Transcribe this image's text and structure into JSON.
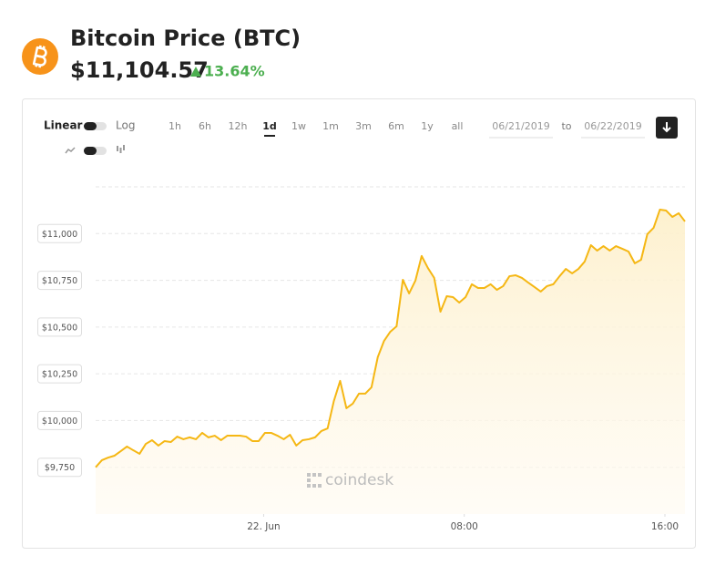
{
  "header": {
    "title": "Bitcoin Price (BTC)",
    "price": "$11,104.57",
    "change": "13.64%"
  },
  "controls": {
    "scale_options": [
      "Linear",
      "Log"
    ],
    "ranges": [
      "1h",
      "6h",
      "12h",
      "1d",
      "1w",
      "1m",
      "3m",
      "6m",
      "1y",
      "all"
    ],
    "active_range": "1d",
    "date_from": "06/21/2019",
    "date_separator": "to",
    "date_to": "06/22/2019"
  },
  "chart_data": {
    "type": "area",
    "color": "#f5b714",
    "watermark": "coindesk",
    "x": [
      -6.7,
      -6.45,
      -6.2,
      -5.95,
      -5.7,
      -5.45,
      -5.2,
      -4.95,
      -4.7,
      -4.45,
      -4.2,
      -3.95,
      -3.7,
      -3.45,
      -3.2,
      -2.95,
      -2.7,
      -2.45,
      -2.2,
      -1.95,
      -1.7,
      -1.45,
      -1.2,
      -0.95,
      -0.7,
      -0.45,
      -0.2,
      0.05,
      0.3,
      0.55,
      0.8,
      1.05,
      1.3,
      1.55,
      1.8,
      2.05,
      2.3,
      2.55,
      2.8,
      3.05,
      3.3,
      3.55,
      3.8,
      4.05,
      4.3,
      4.55,
      4.8,
      5.05,
      5.3,
      5.55,
      5.8,
      6.05,
      6.3,
      6.55,
      6.8,
      7.05,
      7.3,
      7.55,
      7.8,
      8.05,
      8.3,
      8.55,
      8.8,
      9.05,
      9.3,
      9.55,
      9.8,
      10.05,
      10.3,
      10.55,
      10.8,
      11.05,
      11.3,
      11.55,
      11.8,
      12.05,
      12.3,
      12.55,
      12.8,
      13.05,
      13.3,
      13.55,
      13.8,
      14.05,
      14.3,
      14.55,
      14.8,
      15.05,
      15.3,
      15.55,
      15.8,
      16.05,
      16.3,
      16.55,
      16.8
    ],
    "values": [
      9750,
      9788,
      9802,
      9812,
      9836,
      9861,
      9841,
      9822,
      9875,
      9895,
      9866,
      9890,
      9885,
      9914,
      9900,
      9910,
      9900,
      9934,
      9910,
      9919,
      9895,
      9919,
      9919,
      9919,
      9914,
      9890,
      9890,
      9934,
      9934,
      9919,
      9900,
      9924,
      9866,
      9895,
      9900,
      9910,
      9944,
      9958,
      10105,
      10212,
      10066,
      10090,
      10144,
      10144,
      10178,
      10339,
      10426,
      10475,
      10504,
      10753,
      10680,
      10748,
      10880,
      10816,
      10763,
      10582,
      10665,
      10660,
      10631,
      10660,
      10729,
      10709,
      10709,
      10729,
      10699,
      10719,
      10772,
      10777,
      10763,
      10738,
      10714,
      10690,
      10719,
      10729,
      10772,
      10811,
      10787,
      10811,
      10850,
      10938,
      10909,
      10933,
      10909,
      10933,
      10919,
      10904,
      10841,
      10860,
      10997,
      11031,
      11128,
      11123,
      11089,
      11109,
      11065
    ],
    "xlim": [
      -6.7,
      16.8
    ],
    "xticks": [
      {
        "value": 0,
        "label": "22. Jun"
      },
      {
        "value": 8,
        "label": "08:00"
      },
      {
        "value": 16,
        "label": "16:00"
      }
    ],
    "ylim": [
      9500,
      11250
    ],
    "yticks": [
      {
        "value": 9750,
        "label": "$9,750"
      },
      {
        "value": 10000,
        "label": "$10,000"
      },
      {
        "value": 10250,
        "label": "$10,250"
      },
      {
        "value": 10500,
        "label": "$10,500"
      },
      {
        "value": 10750,
        "label": "$10,750"
      },
      {
        "value": 11000,
        "label": "$11,000"
      }
    ],
    "grid": true
  }
}
